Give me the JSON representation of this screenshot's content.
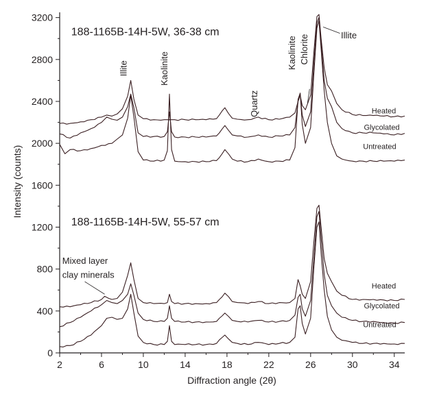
{
  "chart_data": {
    "type": "line",
    "xlabel": "Diffraction angle (2θ)",
    "ylabel": "Intensity (counts)",
    "xlim": [
      2,
      35
    ],
    "ylim": [
      0,
      3250
    ],
    "x_ticks": [
      2,
      6,
      10,
      14,
      18,
      22,
      26,
      30,
      34
    ],
    "y_ticks": [
      0,
      400,
      800,
      1200,
      1600,
      2000,
      2400,
      2800,
      3200
    ],
    "line_color": "#3a1f22",
    "panels": [
      {
        "title": "188-1165B-14H-5W, 36-38 cm",
        "series": [
          {
            "name": "Heated",
            "label_at": [
              33,
              2285
            ],
            "x": [
              2,
              3,
              4,
              5,
              6,
              6.5,
              7,
              7.5,
              8,
              8.5,
              8.8,
              9.1,
              9.5,
              10,
              11,
              12,
              12.5,
              13,
              14,
              15,
              16,
              17,
              17.8,
              18.5,
              19,
              20,
              21,
              22,
              23,
              24,
              24.5,
              24.8,
              25,
              25.2,
              25.5,
              26,
              26.3,
              26.6,
              26.8,
              27,
              27.3,
              27.6,
              28,
              28.5,
              29,
              30,
              31,
              32,
              33,
              34,
              35
            ],
            "y": [
              2190,
              2190,
              2205,
              2225,
              2250,
              2270,
              2260,
              2280,
              2330,
              2450,
              2600,
              2420,
              2270,
              2235,
              2225,
              2225,
              2225,
              2225,
              2225,
              2225,
              2225,
              2235,
              2340,
              2240,
              2230,
              2225,
              2250,
              2225,
              2230,
              2250,
              2290,
              2400,
              2460,
              2360,
              2320,
              2460,
              2860,
              3210,
              3230,
              3000,
              2720,
              2560,
              2500,
              2380,
              2320,
              2275,
              2265,
              2265,
              2260,
              2255,
              2260
            ]
          },
          {
            "name": "Glycolated",
            "label_at": [
              32.8,
              2130
            ],
            "x": [
              2,
              3,
              4,
              5,
              6,
              6.5,
              7,
              7.5,
              8,
              8.5,
              8.8,
              9.1,
              9.5,
              10,
              11,
              12,
              12.3,
              12.5,
              12.7,
              13,
              14,
              15,
              16,
              17,
              17.8,
              18.5,
              19,
              20,
              21,
              22,
              23,
              24,
              24.5,
              24.8,
              25,
              25.2,
              25.5,
              26,
              26.3,
              26.6,
              26.8,
              27,
              27.3,
              27.6,
              28,
              28.5,
              29,
              30,
              31,
              32,
              33,
              34,
              35
            ],
            "y": [
              2090,
              2050,
              2100,
              2140,
              2200,
              2250,
              2230,
              2220,
              2250,
              2350,
              2470,
              2340,
              2100,
              2065,
              2065,
              2065,
              2110,
              2300,
              2110,
              2060,
              2060,
              2060,
              2060,
              2070,
              2170,
              2080,
              2070,
              2060,
              2080,
              2060,
              2070,
              2080,
              2150,
              2400,
              2470,
              2270,
              2160,
              2300,
              2750,
              3150,
              3200,
              2950,
              2600,
              2430,
              2350,
              2200,
              2140,
              2100,
              2100,
              2100,
              2090,
              2080,
              2095
            ]
          },
          {
            "name": "Untreated",
            "label_at": [
              32.6,
              1945
            ],
            "x": [
              2,
              2.5,
              3,
              4,
              5,
              6,
              7,
              7.5,
              8,
              8.5,
              8.8,
              9.1,
              9.5,
              10,
              11,
              12,
              12.3,
              12.5,
              12.7,
              13,
              14,
              15,
              16,
              17,
              17.8,
              18.5,
              19,
              20,
              21,
              22,
              23,
              24,
              24.5,
              24.8,
              25,
              25.2,
              25.5,
              26,
              26.3,
              26.6,
              26.8,
              27,
              27.3,
              27.6,
              28,
              28.5,
              29,
              30,
              31,
              32,
              33,
              34,
              35
            ],
            "y": [
              1990,
              1900,
              1940,
              1930,
              1950,
              1980,
              2000,
              2040,
              2080,
              2240,
              2460,
              2250,
              1920,
              1840,
              1830,
              1840,
              1930,
              2470,
              1940,
              1830,
              1825,
              1825,
              1825,
              1835,
              1940,
              1850,
              1830,
              1825,
              1850,
              1825,
              1830,
              1840,
              1960,
              2420,
              2480,
              2180,
              2000,
              2150,
              2650,
              3100,
              3170,
              2900,
              2500,
              2200,
              2000,
              1880,
              1850,
              1830,
              1830,
              1830,
              1830,
              1830,
              1840
            ]
          }
        ]
      },
      {
        "title": "188-1165B-14H-5W, 55-57 cm",
        "series": [
          {
            "name": "Heated",
            "label_at": [
              33,
              615
            ],
            "x": [
              2,
              3,
              4,
              5,
              6,
              6.3,
              6.7,
              7,
              7.5,
              8,
              8.5,
              8.8,
              9.1,
              9.5,
              10,
              11,
              12,
              12.3,
              12.5,
              12.7,
              13,
              14,
              15,
              16,
              17,
              17.8,
              18.5,
              19,
              20,
              21,
              22,
              23,
              24,
              24.5,
              24.8,
              25,
              25.2,
              25.5,
              26,
              26.3,
              26.6,
              26.8,
              27,
              27.3,
              27.6,
              28,
              28.5,
              29,
              30,
              31,
              32,
              33,
              34,
              35
            ],
            "y": [
              440,
              440,
              460,
              480,
              510,
              540,
              520,
              510,
              520,
              580,
              740,
              860,
              700,
              520,
              480,
              470,
              470,
              480,
              560,
              490,
              470,
              470,
              470,
              470,
              480,
              570,
              490,
              480,
              470,
              490,
              470,
              480,
              480,
              520,
              700,
              640,
              560,
              520,
              680,
              1050,
              1380,
              1410,
              1200,
              900,
              760,
              680,
              590,
              550,
              510,
              510,
              510,
              505,
              500,
              510
            ]
          },
          {
            "name": "Glycolated",
            "label_at": [
              32.8,
              425
            ],
            "x": [
              2,
              3,
              4,
              5,
              6,
              6.5,
              7,
              7.5,
              8,
              8.5,
              8.8,
              9.1,
              9.5,
              10,
              11,
              12,
              12.3,
              12.5,
              12.7,
              13,
              14,
              15,
              16,
              17,
              17.8,
              18.5,
              19,
              20,
              21,
              22,
              23,
              24,
              24.5,
              24.8,
              25,
              25.2,
              25.5,
              26,
              26.3,
              26.6,
              26.8,
              27,
              27.3,
              27.6,
              28,
              28.5,
              29,
              30,
              31,
              32,
              33,
              34,
              35
            ],
            "y": [
              250,
              290,
              340,
              400,
              460,
              500,
              480,
              470,
              500,
              560,
              660,
              550,
              380,
              320,
              300,
              300,
              330,
              450,
              330,
              300,
              295,
              295,
              295,
              300,
              380,
              310,
              300,
              295,
              310,
              295,
              300,
              310,
              360,
              530,
              560,
              420,
              350,
              500,
              900,
              1300,
              1350,
              1100,
              750,
              550,
              450,
              380,
              340,
              310,
              300,
              300,
              290,
              285,
              290
            ]
          },
          {
            "name": "Untreated",
            "label_at": [
              32.6,
              245
            ],
            "x": [
              2,
              3,
              4,
              5,
              6,
              6.5,
              7,
              7.5,
              8,
              8.5,
              8.8,
              9.1,
              9.5,
              10,
              11,
              12,
              12.3,
              12.5,
              12.7,
              13,
              14,
              15,
              16,
              17,
              17.8,
              18.5,
              19,
              20,
              21,
              22,
              23,
              24,
              24.5,
              24.8,
              25,
              25.2,
              25.5,
              26,
              26.3,
              26.6,
              26.8,
              27,
              27.3,
              27.6,
              28,
              28.5,
              29,
              30,
              31,
              32,
              33,
              34,
              35
            ],
            "y": [
              60,
              70,
              110,
              170,
              260,
              330,
              340,
              320,
              330,
              420,
              560,
              380,
              160,
              100,
              80,
              80,
              110,
              260,
              110,
              80,
              80,
              80,
              80,
              90,
              170,
              100,
              90,
              80,
              100,
              80,
              90,
              100,
              150,
              420,
              450,
              280,
              180,
              330,
              800,
              1200,
              1250,
              950,
              600,
              350,
              220,
              150,
              120,
              100,
              90,
              90,
              90,
              85,
              90
            ]
          }
        ]
      }
    ],
    "annotations": [
      {
        "text": "Illite",
        "x": 8.4,
        "y": 2640,
        "rotate": -90
      },
      {
        "text": "Kaolinite",
        "x": 12.3,
        "y": 2550,
        "rotate": -90
      },
      {
        "text": "Quartz",
        "x": 20.9,
        "y": 2250,
        "rotate": -90
      },
      {
        "text": "Kaolinite",
        "x": 24.5,
        "y": 2700,
        "rotate": -90
      },
      {
        "text": "Chlorite",
        "x": 25.7,
        "y": 2750,
        "rotate": -90
      },
      {
        "text": "Illite",
        "x": 28.9,
        "y": 3000,
        "rotate": 0
      },
      {
        "text": "Mixed layer",
        "x": 2.25,
        "y": 850,
        "rotate": 0
      },
      {
        "text": "clay minerals",
        "x": 2.25,
        "y": 715,
        "rotate": 0
      }
    ],
    "grid": false,
    "legend": "none"
  }
}
